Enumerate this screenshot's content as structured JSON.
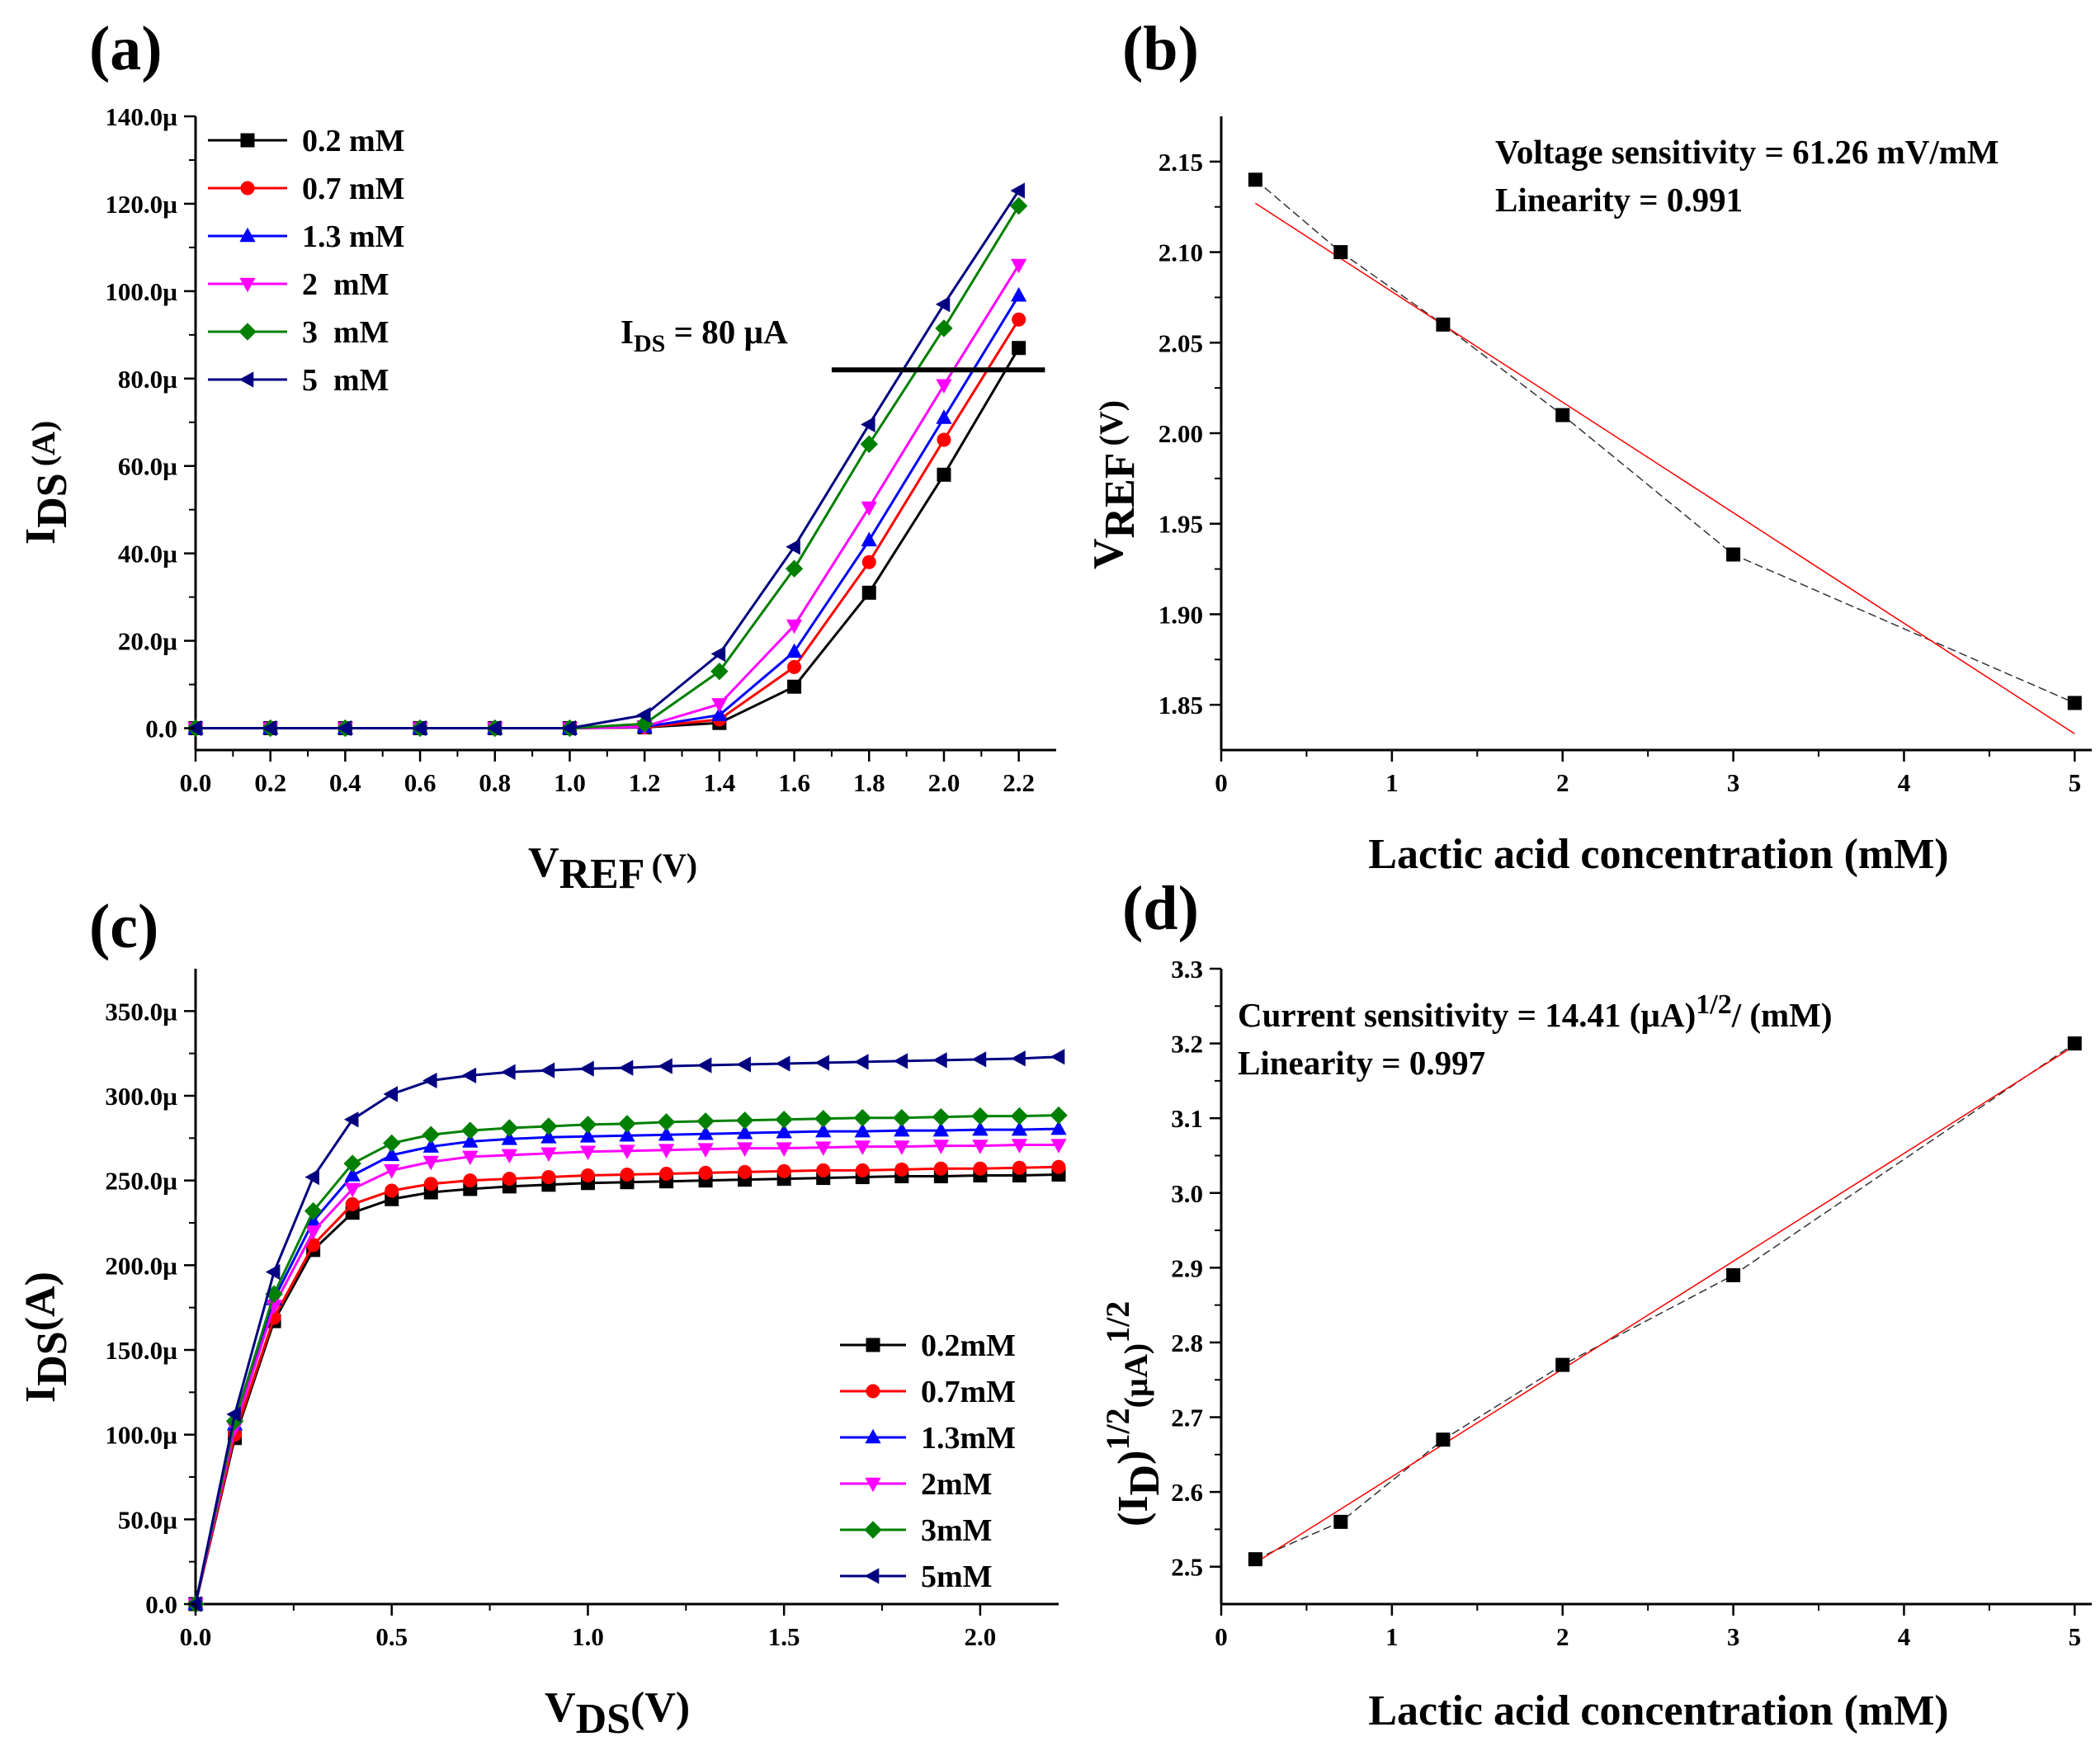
{
  "chart_data": [
    {
      "panel": "(a)",
      "type": "line",
      "xlabel_main": "V",
      "xlabel_sub": "REF",
      "xlabel_unit": "(V)",
      "ylabel_main": "I",
      "ylabel_sub": "DS",
      "ylabel_unit": "(A)",
      "xlim": [
        0,
        2.3
      ],
      "ylim": [
        -5,
        140
      ],
      "xticks": [
        0,
        0.2,
        0.4,
        0.6,
        0.8,
        1.0,
        1.2,
        1.4,
        1.6,
        1.8,
        2.0,
        2.2
      ],
      "xticklabels": [
        "0.0",
        "0.2",
        "0.4",
        "0.6",
        "0.8",
        "1.0",
        "1.2",
        "1.4",
        "1.6",
        "1.8",
        "2.0",
        "2.2"
      ],
      "yticks": [
        0,
        20,
        40,
        60,
        80,
        100,
        120,
        140
      ],
      "yticklabels": [
        "0.0",
        "20.0µ",
        "40.0µ",
        "60.0µ",
        "80.0µ",
        "100.0µ",
        "120.0µ",
        "140.0µ"
      ],
      "x": [
        0,
        0.2,
        0.4,
        0.6,
        0.8,
        1.0,
        1.2,
        1.4,
        1.6,
        1.8,
        2.0,
        2.2
      ],
      "series": [
        {
          "name": "0.2 mM",
          "color": "#000000",
          "marker": "square",
          "values": [
            0,
            0,
            0,
            0,
            0,
            0,
            0.2,
            1.2,
            9.5,
            31,
            58,
            87
          ]
        },
        {
          "name": "0.7 mM",
          "color": "#ff0000",
          "marker": "circle",
          "values": [
            0,
            0,
            0,
            0,
            0,
            0,
            0.2,
            2,
            14,
            38,
            66,
            93.5
          ]
        },
        {
          "name": "1.3 mM",
          "color": "#0000ff",
          "marker": "triangle-up",
          "values": [
            0,
            0,
            0,
            0,
            0,
            0,
            0.3,
            3,
            17.5,
            43,
            71,
            99
          ]
        },
        {
          "name": "2  mM",
          "color": "#ff00ff",
          "marker": "triangle-down",
          "values": [
            0,
            0,
            0,
            0,
            0,
            0,
            0.4,
            5.5,
            23.5,
            50.5,
            78.5,
            106
          ]
        },
        {
          "name": "3  mM",
          "color": "#008000",
          "marker": "diamond",
          "values": [
            0,
            0,
            0,
            0,
            0,
            0,
            1,
            13,
            36.5,
            65,
            91.5,
            119.5
          ]
        },
        {
          "name": "5  mM",
          "color": "#000080",
          "marker": "triangle-left",
          "values": [
            0,
            0,
            0,
            0,
            0,
            0,
            3,
            17,
            41.5,
            69.5,
            97,
            123
          ]
        }
      ],
      "annotation": {
        "main": "I",
        "sub": "DS",
        "rest": " = 80 µA",
        "line_x": [
          1.7,
          2.27
        ],
        "line_y": 82
      }
    },
    {
      "panel": "(b)",
      "type": "scatter",
      "xlabel": "Lactic acid concentration (mM)",
      "ylabel_main": "V",
      "ylabel_sub": "REF",
      "ylabel_unit": "(V)",
      "xlim": [
        0,
        5.1
      ],
      "ylim": [
        1.825,
        2.175
      ],
      "xticks": [
        0,
        1,
        2,
        3,
        4,
        5
      ],
      "xticklabels": [
        "0",
        "1",
        "2",
        "3",
        "4",
        "5"
      ],
      "yticks": [
        1.85,
        1.9,
        1.95,
        2.0,
        2.05,
        2.1,
        2.15
      ],
      "yticklabels": [
        "1.85",
        "1.90",
        "1.95",
        "2.00",
        "2.05",
        "2.10",
        "2.15"
      ],
      "x": [
        0.2,
        0.7,
        1.3,
        2,
        3,
        5
      ],
      "y": [
        2.14,
        2.1,
        2.06,
        2.01,
        1.933,
        1.851
      ],
      "fit": {
        "x": [
          0.2,
          5
        ],
        "y": [
          2.127,
          1.834
        ]
      },
      "text_lines": [
        "Voltage sensitivity = 61.26 mV/mM",
        "Linearity = 0.991"
      ]
    },
    {
      "panel": "(c)",
      "type": "line",
      "xlabel_main": "V",
      "xlabel_sub": "DS",
      "xlabel_unit": "(V)",
      "ylabel_main": "I",
      "ylabel_sub": "DS",
      "ylabel_unit": "(A)",
      "xlim": [
        0,
        2.2
      ],
      "ylim": [
        0,
        375
      ],
      "xticks": [
        0,
        0.5,
        1.0,
        1.5,
        2.0
      ],
      "xticklabels": [
        "0.0",
        "0.5",
        "1.0",
        "1.5",
        "2.0"
      ],
      "yticks": [
        0,
        50,
        100,
        150,
        200,
        250,
        300,
        350
      ],
      "yticklabels": [
        "0.0",
        "50.0µ",
        "100.0µ",
        "150.0µ",
        "200.0µ",
        "250.0µ",
        "300.0µ",
        "350.0µ"
      ],
      "x": [
        0,
        0.1,
        0.2,
        0.3,
        0.4,
        0.5,
        0.6,
        0.7,
        0.8,
        0.9,
        1.0,
        1.1,
        1.2,
        1.3,
        1.4,
        1.5,
        1.6,
        1.7,
        1.8,
        1.9,
        2.0,
        2.1,
        2.2
      ],
      "series": [
        {
          "name": "0.2mM",
          "color": "#000000",
          "marker": "square",
          "values": [
            0,
            98,
            167,
            209,
            231,
            239,
            243,
            245,
            246.5,
            247.5,
            248.5,
            249,
            249.5,
            250,
            250.5,
            251,
            251.5,
            252,
            252.5,
            252.5,
            253,
            253,
            253.5
          ]
        },
        {
          "name": "0.7mM",
          "color": "#ff0000",
          "marker": "circle",
          "values": [
            0,
            100,
            169,
            212,
            236,
            244,
            248,
            250,
            251,
            252,
            253,
            253.5,
            254,
            254.5,
            255,
            255.5,
            256,
            256,
            256.5,
            257,
            257,
            257.5,
            258
          ]
        },
        {
          "name": "1.3mM",
          "color": "#0000ff",
          "marker": "triangle-up",
          "values": [
            0,
            106,
            180,
            226,
            253,
            265,
            270,
            273,
            274.5,
            275.5,
            276,
            276.5,
            277,
            277.5,
            278,
            278.5,
            279,
            279,
            279.5,
            279.5,
            280,
            280,
            280.5
          ]
        },
        {
          "name": "2mM",
          "color": "#ff00ff",
          "marker": "triangle-down",
          "values": [
            0,
            104,
            176,
            220,
            245,
            256,
            261,
            264,
            265,
            266,
            267,
            267.5,
            268,
            268.5,
            269,
            269,
            269.5,
            270,
            270,
            270.5,
            270.5,
            271,
            271
          ]
        },
        {
          "name": "3mM",
          "color": "#008000",
          "marker": "diamond",
          "values": [
            0,
            108,
            183,
            232,
            260,
            272,
            277,
            279.5,
            281,
            282,
            283,
            283.5,
            284.5,
            285,
            285.5,
            286,
            286.5,
            287,
            287,
            287.5,
            288,
            288,
            288.5
          ]
        },
        {
          "name": "5mM",
          "color": "#000080",
          "marker": "triangle-left",
          "values": [
            0,
            112,
            196,
            252,
            286,
            301,
            309,
            312,
            314,
            315,
            316,
            316.5,
            317.5,
            318,
            318.5,
            319,
            319.5,
            320,
            320.5,
            321,
            321.5,
            322,
            323
          ]
        }
      ]
    },
    {
      "panel": "(d)",
      "type": "scatter",
      "xlabel": "Lactic acid concentration (mM)",
      "ylabel_a": "(I",
      "ylabel_sub": "D",
      "ylabel_b": ")",
      "ylabel_sup1": "1/2",
      "ylabel_c": "(µA)",
      "ylabel_sup2": "1/2",
      "xlim": [
        0,
        5.1
      ],
      "ylim": [
        2.45,
        3.3
      ],
      "xticks": [
        0,
        1,
        2,
        3,
        4,
        5
      ],
      "xticklabels": [
        "0",
        "1",
        "2",
        "3",
        "4",
        "5"
      ],
      "yticks": [
        2.5,
        2.6,
        2.7,
        2.8,
        2.9,
        3.0,
        3.1,
        3.2,
        3.3
      ],
      "yticklabels": [
        "2.5",
        "2.6",
        "2.7",
        "2.8",
        "2.9",
        "3.0",
        "3.1",
        "3.2",
        "3.3"
      ],
      "x": [
        0.2,
        0.7,
        1.3,
        2,
        3,
        5
      ],
      "y": [
        2.51,
        2.56,
        2.67,
        2.77,
        2.89,
        3.2
      ],
      "fit": {
        "x": [
          0.2,
          5
        ],
        "y": [
          2.505,
          3.197
        ]
      },
      "text1_a": "Current sensitivity = 14.41 (µA)",
      "text1_sup": "1/2",
      "text1_b": "/ (mM)",
      "text2": "Linearity = 0.997"
    }
  ]
}
